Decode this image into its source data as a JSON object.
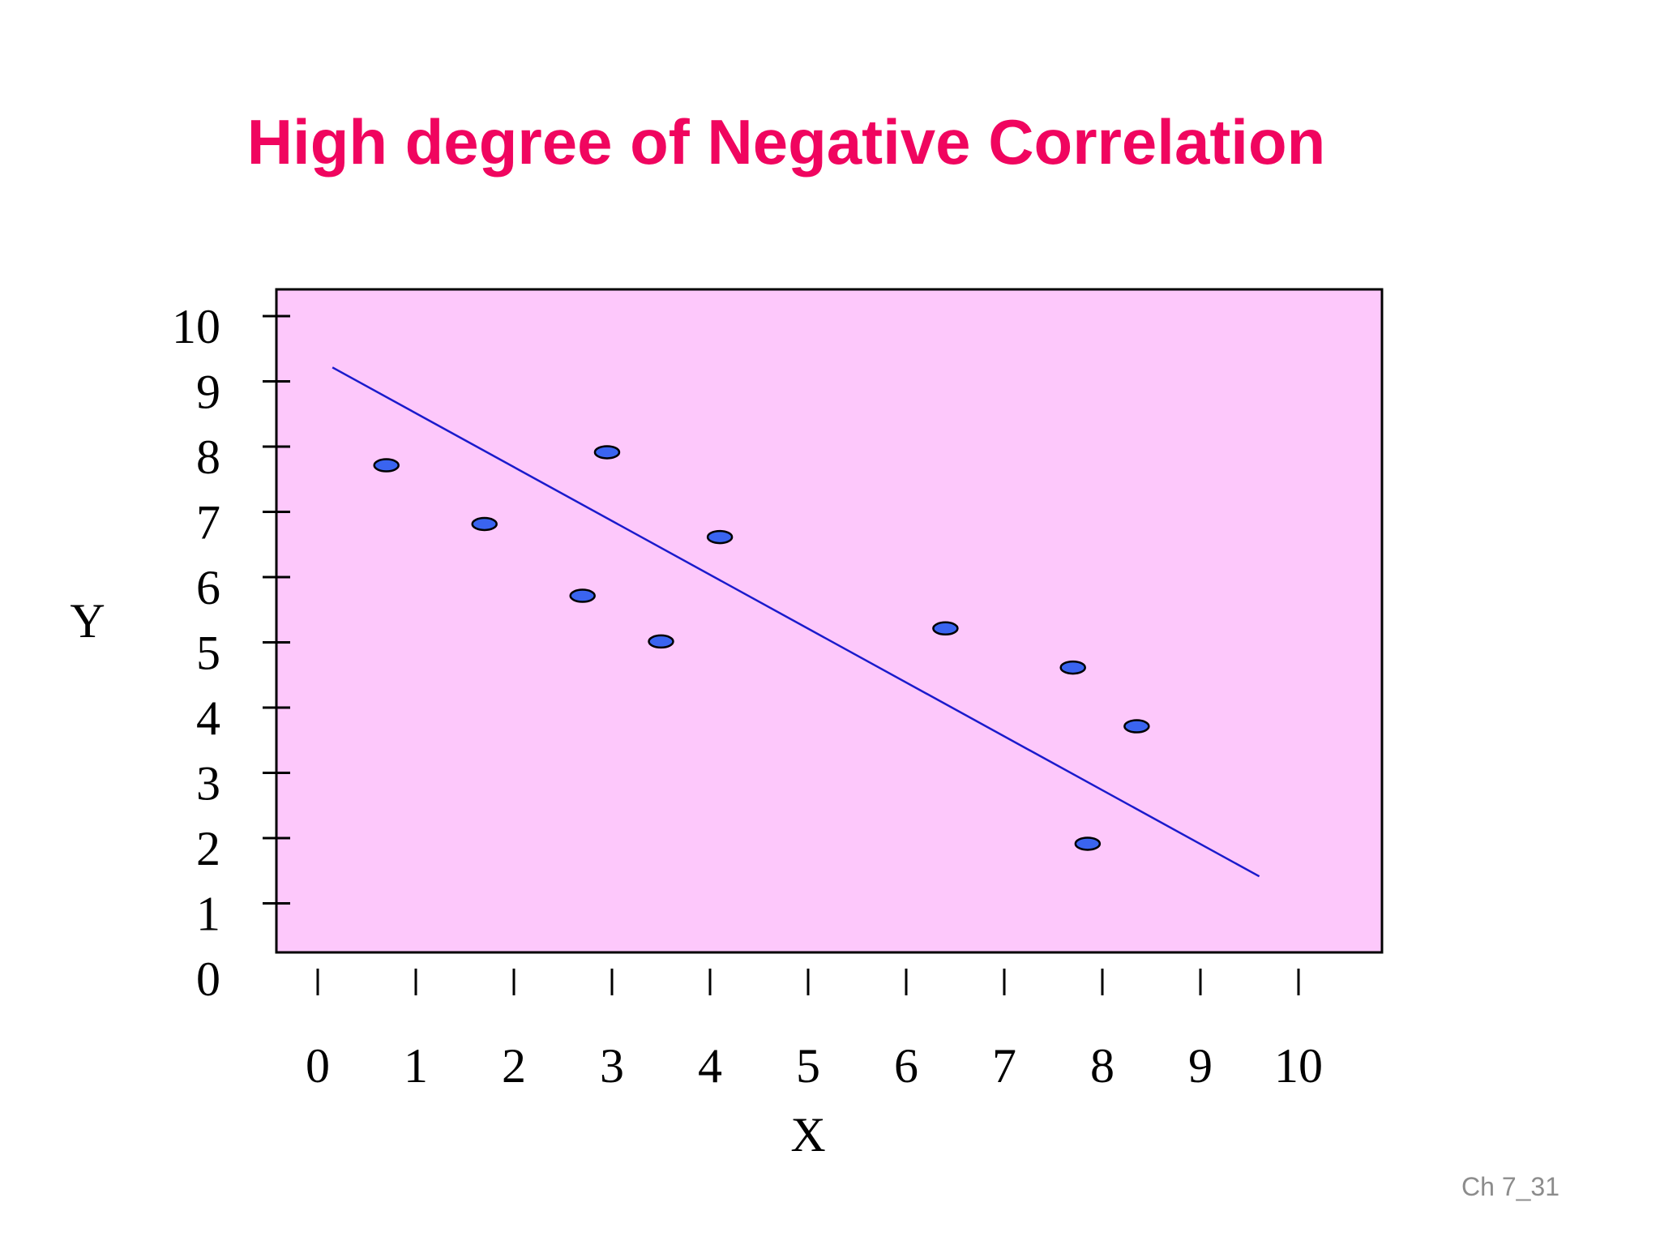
{
  "slide": {
    "title": "High degree of Negative Correlation",
    "number": "Ch 7_31"
  },
  "colors": {
    "title": "#f0055f",
    "plot_background": "#fdc8fb",
    "points": "#3a64f0",
    "trend_line": "#1a1acc",
    "axis": "#000000"
  },
  "chart_data": {
    "type": "scatter",
    "title": "",
    "xlabel": "X",
    "ylabel": "Y",
    "xlim": [
      0,
      10
    ],
    "ylim": [
      0,
      10
    ],
    "x_ticks": [
      "0",
      "1",
      "2",
      "3",
      "4",
      "5",
      "6",
      "7",
      "8",
      "9",
      "10"
    ],
    "x_tick_values": [
      0,
      1,
      2,
      3,
      4,
      5,
      6,
      7,
      8,
      9,
      10
    ],
    "y_ticks": [
      "0",
      "1",
      "2",
      "3",
      "4",
      "5",
      "6",
      "7",
      "8",
      "9",
      "10"
    ],
    "y_tick_values": [
      0,
      1,
      2,
      3,
      4,
      5,
      6,
      7,
      8,
      9,
      10
    ],
    "grid": false,
    "legend": "none",
    "points": [
      {
        "x": 0.7,
        "y": 7.9
      },
      {
        "x": 1.7,
        "y": 7.0
      },
      {
        "x": 2.7,
        "y": 5.9
      },
      {
        "x": 2.95,
        "y": 8.1
      },
      {
        "x": 3.5,
        "y": 5.2
      },
      {
        "x": 4.1,
        "y": 6.8
      },
      {
        "x": 6.4,
        "y": 5.4
      },
      {
        "x": 7.7,
        "y": 4.8
      },
      {
        "x": 7.85,
        "y": 2.1
      },
      {
        "x": 8.35,
        "y": 3.9
      }
    ],
    "trend_line": {
      "x": [
        0.15,
        9.6
      ],
      "y": [
        9.4,
        1.6
      ]
    }
  }
}
